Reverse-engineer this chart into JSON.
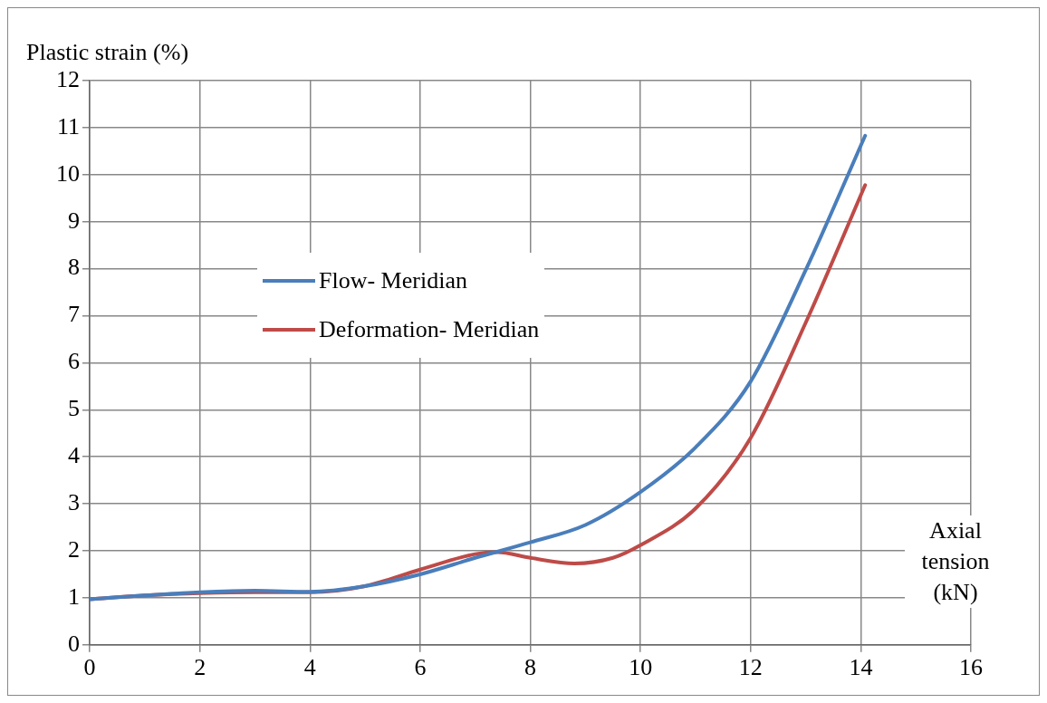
{
  "chart_data": {
    "type": "line",
    "xlabel": "Axial tension (kN)",
    "ylabel": "Plastic strain (%)",
    "xlim": [
      0,
      16
    ],
    "xticks": [
      0,
      2,
      4,
      6,
      8,
      10,
      12,
      14,
      16
    ],
    "ylim": [
      0,
      12
    ],
    "yticks": [
      0,
      1,
      2,
      3,
      4,
      5,
      6,
      7,
      8,
      9,
      10,
      11,
      12
    ],
    "grid": true,
    "legend": "center left",
    "marker": "none",
    "line_style": "solid",
    "series": [
      {
        "name": "Flow- Meridian",
        "color": "#4a7ebb",
        "x": [
          0,
          1,
          2,
          3,
          4,
          5,
          6,
          7,
          8,
          9,
          10,
          11,
          12,
          13,
          14.08
        ],
        "values": [
          0.97,
          1.05,
          1.12,
          1.15,
          1.13,
          1.25,
          1.5,
          1.85,
          2.18,
          2.55,
          3.25,
          4.2,
          5.6,
          7.97,
          10.83
        ]
      },
      {
        "name": "Deformation- Meridian",
        "color": "#be4b48",
        "x": [
          0,
          1,
          2,
          3,
          4,
          5,
          6,
          7,
          7.4,
          8,
          8.8,
          9.5,
          10,
          11,
          12,
          13,
          14.08
        ],
        "values": [
          0.97,
          1.05,
          1.1,
          1.12,
          1.12,
          1.25,
          1.6,
          1.93,
          1.97,
          1.85,
          1.73,
          1.85,
          2.12,
          2.9,
          4.4,
          6.85,
          9.78
        ]
      }
    ]
  }
}
